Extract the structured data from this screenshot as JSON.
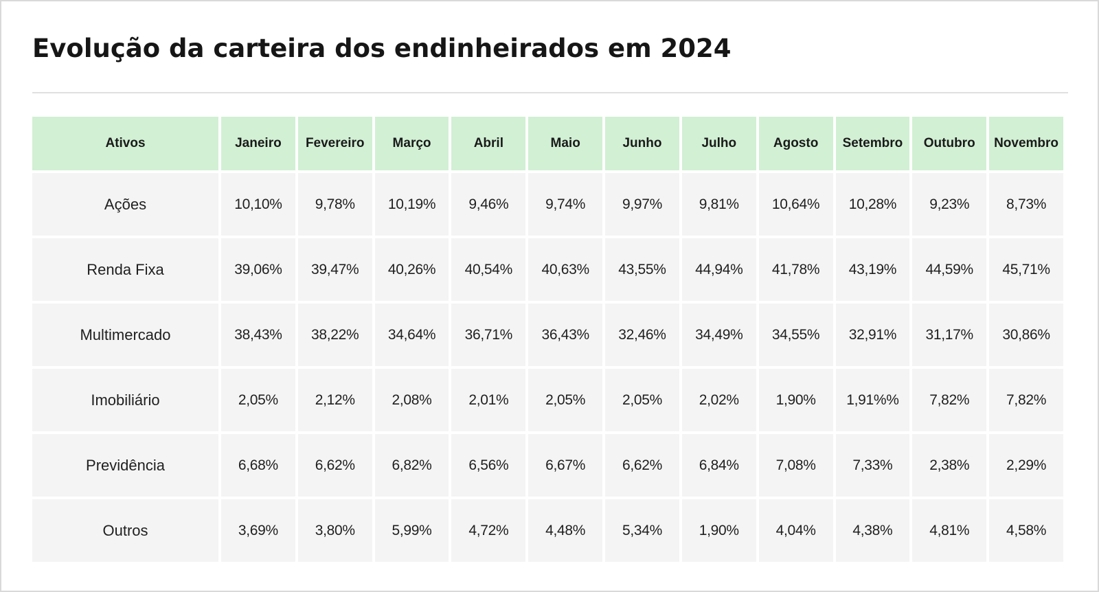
{
  "title": "Evolução da carteira dos endinheirados em 2024",
  "colors": {
    "header_bg": "#d2f0d4",
    "cell_bg": "#f4f4f4",
    "divider": "#e0e0e0"
  },
  "chart_data": {
    "type": "table",
    "title": "Evolução da carteira dos endinheirados em 2024",
    "columns": [
      "Ativos",
      "Janeiro",
      "Fevereiro",
      "Março",
      "Abril",
      "Maio",
      "Junho",
      "Julho",
      "Agosto",
      "Setembro",
      "Outubro",
      "Novembro"
    ],
    "rows": [
      {
        "asset": "Ações",
        "values": [
          "10,10%",
          "9,78%",
          "10,19%",
          "9,46%",
          "9,74%",
          "9,97%",
          "9,81%",
          "10,64%",
          "10,28%",
          "9,23%",
          "8,73%"
        ]
      },
      {
        "asset": "Renda Fixa",
        "values": [
          "39,06%",
          "39,47%",
          "40,26%",
          "40,54%",
          "40,63%",
          "43,55%",
          "44,94%",
          "41,78%",
          "43,19%",
          "44,59%",
          "45,71%"
        ]
      },
      {
        "asset": "Multimercado",
        "values": [
          "38,43%",
          "38,22%",
          "34,64%",
          "36,71%",
          "36,43%",
          "32,46%",
          "34,49%",
          "34,55%",
          "32,91%",
          "31,17%",
          "30,86%"
        ]
      },
      {
        "asset": "Imobiliário",
        "values": [
          "2,05%",
          "2,12%",
          "2,08%",
          "2,01%",
          "2,05%",
          "2,05%",
          "2,02%",
          "1,90%",
          "1,91%%",
          "7,82%",
          "7,82%"
        ]
      },
      {
        "asset": "Previdência",
        "values": [
          "6,68%",
          "6,62%",
          "6,82%",
          "6,56%",
          "6,67%",
          "6,62%",
          "6,84%",
          "7,08%",
          "7,33%",
          "2,38%",
          "2,29%"
        ]
      },
      {
        "asset": "Outros",
        "values": [
          "3,69%",
          "3,80%",
          "5,99%",
          "4,72%",
          "4,48%",
          "5,34%",
          "1,90%",
          "4,04%",
          "4,38%",
          "4,81%",
          "4,58%"
        ]
      }
    ]
  }
}
